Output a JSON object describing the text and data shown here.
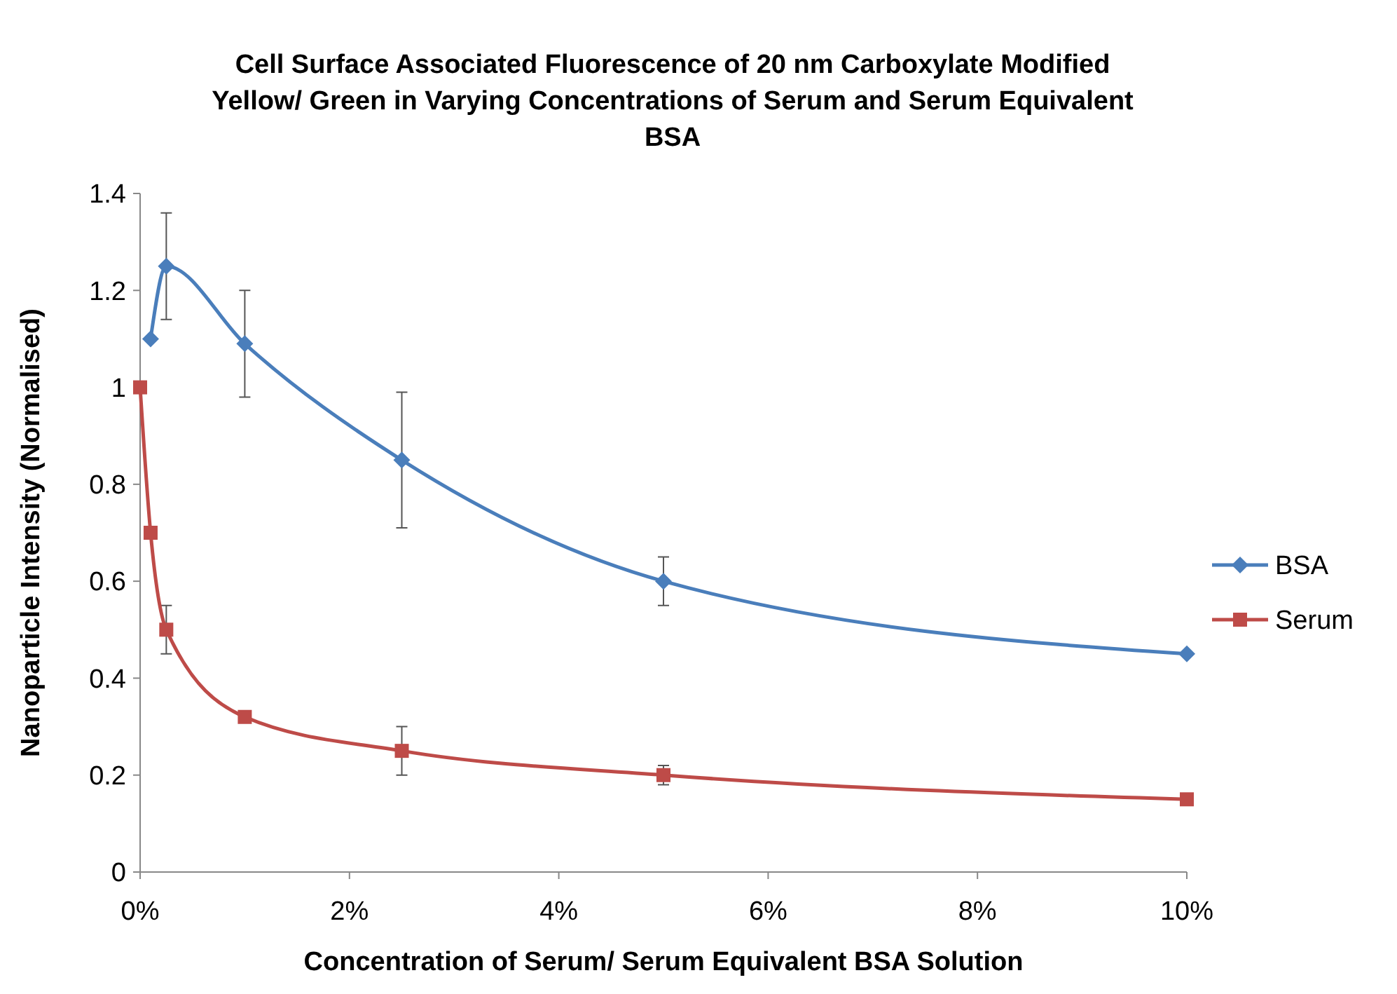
{
  "chart_data": {
    "type": "line",
    "title": "Cell Surface Associated Fluorescence of 20 nm Carboxylate Modified Yellow/ Green in Varying Concentrations of Serum and Serum Equivalent BSA",
    "xlabel": "Concentration of Serum/ Serum Equivalent BSA Solution",
    "ylabel": "Nanoparticle Intensity (Normalised)",
    "x": [
      0,
      0.1,
      0.25,
      1,
      2.5,
      5,
      10
    ],
    "xlim": [
      0,
      10
    ],
    "xticks": [
      {
        "value": 0,
        "label": "0%"
      },
      {
        "value": 2,
        "label": "2%"
      },
      {
        "value": 4,
        "label": "4%"
      },
      {
        "value": 6,
        "label": "6%"
      },
      {
        "value": 8,
        "label": "8%"
      },
      {
        "value": 10,
        "label": "10%"
      }
    ],
    "ylim": [
      0,
      1.4
    ],
    "yticks": [
      0,
      0.2,
      0.4,
      0.6,
      0.8,
      1,
      1.2,
      1.4
    ],
    "grid": false,
    "legend": "right",
    "series": [
      {
        "name": "BSA",
        "color": "#4a7ebb",
        "marker": "diamond",
        "values": [
          null,
          1.1,
          1.25,
          1.09,
          0.85,
          0.6,
          0.45
        ],
        "errors": [
          null,
          null,
          0.11,
          0.11,
          0.14,
          0.05,
          null
        ]
      },
      {
        "name": "Serum",
        "color": "#be4b48",
        "marker": "square",
        "values": [
          1.0,
          0.7,
          0.5,
          0.32,
          0.25,
          0.2,
          0.15
        ],
        "errors": [
          null,
          null,
          0.05,
          null,
          0.05,
          0.02,
          null
        ]
      }
    ]
  }
}
